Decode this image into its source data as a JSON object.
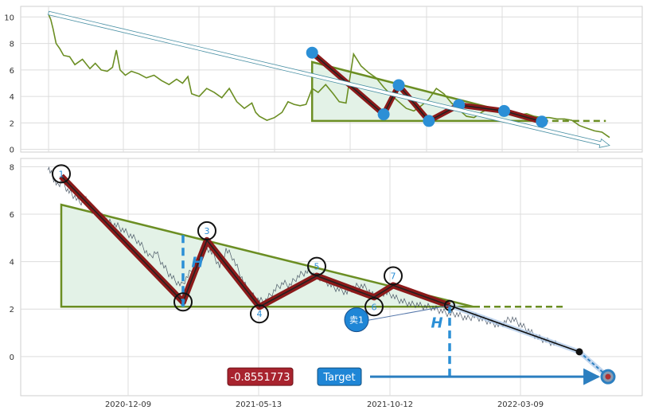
{
  "chart_data": [
    {
      "type": "line",
      "panel": "overview",
      "ylim": [
        -0.2,
        10.8
      ],
      "xlim": [
        0,
        745
      ],
      "yticks": [
        0,
        2,
        4,
        6,
        8,
        10
      ],
      "grid": true,
      "series": [
        {
          "name": "",
          "color": "#6b8e23",
          "x": [
            0,
            3,
            6,
            10,
            15,
            20,
            28,
            35,
            45,
            55,
            62,
            70,
            78,
            85,
            90,
            95,
            102,
            110,
            120,
            130,
            140,
            150,
            160,
            170,
            178,
            185,
            190,
            200,
            210,
            220,
            230,
            240,
            250,
            260,
            270,
            275,
            280,
            290,
            300,
            310,
            318,
            326,
            334,
            342,
            350,
            358,
            368,
            378,
            386,
            395,
            405,
            415,
            425,
            435,
            445,
            455,
            465,
            475,
            485,
            495,
            505,
            515,
            525,
            535,
            545,
            555,
            565,
            575,
            585,
            595,
            605,
            615,
            625,
            635,
            645,
            655,
            665,
            675,
            685,
            695,
            705,
            715,
            725,
            735,
            745
          ],
          "y": [
            10.2,
            9.8,
            9.1,
            8.0,
            7.6,
            7.1,
            7.0,
            6.4,
            6.8,
            6.1,
            6.5,
            6.0,
            5.9,
            6.2,
            7.5,
            6.0,
            5.6,
            5.9,
            5.7,
            5.4,
            5.6,
            5.2,
            4.9,
            5.3,
            5.0,
            5.5,
            4.2,
            4.0,
            4.6,
            4.3,
            3.9,
            4.6,
            3.6,
            3.1,
            3.5,
            2.8,
            2.5,
            2.2,
            2.4,
            2.8,
            3.6,
            3.4,
            3.3,
            3.4,
            4.6,
            4.3,
            4.9,
            4.2,
            3.6,
            3.5,
            7.2,
            6.3,
            5.8,
            5.4,
            4.7,
            4.1,
            3.6,
            3.1,
            2.9,
            3.3,
            3.8,
            4.6,
            4.2,
            3.5,
            3.0,
            2.5,
            2.4,
            2.8,
            3.1,
            3.0,
            2.8,
            2.7,
            2.6,
            2.7,
            2.5,
            2.4,
            2.4,
            2.3,
            2.3,
            2.2,
            1.8,
            1.6,
            1.4,
            1.3,
            0.9
          ]
        }
      ],
      "pattern": {
        "triangle": {
          "apex": [
            350,
            6.6
          ],
          "right": [
            655,
            2.15
          ],
          "base_left": [
            350,
            2.15
          ]
        },
        "zigzag": [
          [
            350,
            7.3
          ],
          [
            445,
            2.65
          ],
          [
            465,
            4.85
          ],
          [
            505,
            2.15
          ],
          [
            545,
            3.35
          ],
          [
            605,
            2.9
          ],
          [
            655,
            2.1
          ]
        ],
        "extension_to": 740,
        "trend_arrow": {
          "from": [
            0,
            10.3
          ],
          "to": [
            745,
            0.3
          ]
        }
      }
    },
    {
      "type": "line",
      "panel": "detail",
      "ylim": [
        -1.65,
        8.35
      ],
      "xlim": [
        0,
        755
      ],
      "yticks": [
        0,
        2,
        4,
        6,
        8
      ],
      "xticks": [
        {
          "x": 101,
          "label": "2020-12-09"
        },
        {
          "x": 265,
          "label": "2021-05-13"
        },
        {
          "x": 430,
          "label": "2021-10-12"
        },
        {
          "x": 594,
          "label": "2022-03-09"
        }
      ],
      "grid": true,
      "series": [
        {
          "name": "",
          "color": "#2f3d4f",
          "x": [
            0,
            6,
            12,
            18,
            25,
            32,
            40,
            48,
            56,
            64,
            72,
            80,
            88,
            96,
            104,
            112,
            120,
            128,
            136,
            144,
            152,
            160,
            168,
            176,
            184,
            192,
            200,
            208,
            216,
            224,
            232,
            240,
            248,
            256,
            264,
            272,
            280,
            288,
            296,
            304,
            312,
            320,
            328,
            336,
            344,
            352,
            360,
            368,
            376,
            384,
            392,
            400,
            408,
            416,
            424,
            432,
            440,
            448,
            456,
            464,
            472,
            480,
            488,
            496,
            504,
            512,
            520,
            528,
            536,
            544,
            552,
            560,
            568,
            576,
            584,
            592,
            600,
            608,
            616,
            624,
            632,
            640
          ],
          "y": [
            8.0,
            7.6,
            7.2,
            7.4,
            7.0,
            6.8,
            6.5,
            6.6,
            6.1,
            6.0,
            5.8,
            5.6,
            5.5,
            5.3,
            5.1,
            4.9,
            4.6,
            4.2,
            4.4,
            3.9,
            3.5,
            3.2,
            3.0,
            3.4,
            3.8,
            4.3,
            4.6,
            4.3,
            3.8,
            4.5,
            4.2,
            3.6,
            3.0,
            2.6,
            2.4,
            2.3,
            2.6,
            2.9,
            3.1,
            3.0,
            3.3,
            3.5,
            3.6,
            3.4,
            3.3,
            3.1,
            2.9,
            2.8,
            2.7,
            2.9,
            3.0,
            2.9,
            2.6,
            2.6,
            2.7,
            2.6,
            2.4,
            2.3,
            2.2,
            2.2,
            2.1,
            2.1,
            2.0,
            1.9,
            1.8,
            1.8,
            1.7,
            1.6,
            1.7,
            1.6,
            1.5,
            1.4,
            1.3,
            1.5,
            1.6,
            1.4,
            1.2,
            1.0,
            0.8,
            0.7,
            0.6,
            0.5
          ]
        }
      ],
      "pattern": {
        "triangle": {
          "apex": [
            17,
            6.4
          ],
          "right": [
            535,
            2.1
          ],
          "base_left": [
            17,
            2.1
          ]
        },
        "extension_to": 650,
        "points": [
          {
            "label": "1",
            "x": 17,
            "y": 7.7
          },
          {
            "label": "2",
            "x": 170,
            "y": 2.3
          },
          {
            "label": "3",
            "x": 200,
            "y": 5.3
          },
          {
            "label": "4",
            "x": 266,
            "y": 1.8
          },
          {
            "label": "5",
            "x": 338,
            "y": 3.8
          },
          {
            "label": "6",
            "x": 410,
            "y": 2.1
          },
          {
            "label": "7",
            "x": 434,
            "y": 3.4
          }
        ],
        "zigzag": [
          [
            17,
            7.6
          ],
          [
            170,
            2.3
          ],
          [
            200,
            4.9
          ],
          [
            266,
            2.1
          ],
          [
            338,
            3.4
          ],
          [
            410,
            2.5
          ],
          [
            434,
            3.0
          ],
          [
            505,
            2.15
          ]
        ],
        "breakout_point": [
          505,
          2.15
        ],
        "projection": [
          [
            505,
            2.15
          ],
          [
            668,
            0.2
          ],
          [
            704,
            -0.85
          ]
        ],
        "h_lines": [
          {
            "label": "H",
            "x": 170,
            "y_from": 2.1,
            "y_to": 5.3
          },
          {
            "label": "H",
            "x": 505,
            "y_from": -0.85,
            "y_to": 2.1
          }
        ],
        "sell_marker": {
          "label": "卖1",
          "x": 388,
          "y": 1.55
        },
        "target_point": [
          704,
          -0.85
        ],
        "target_value": "-0.8551773",
        "target_label": "Target",
        "target_arrow": {
          "from_x": 405,
          "to_x": 692,
          "y": -0.85
        }
      }
    }
  ]
}
